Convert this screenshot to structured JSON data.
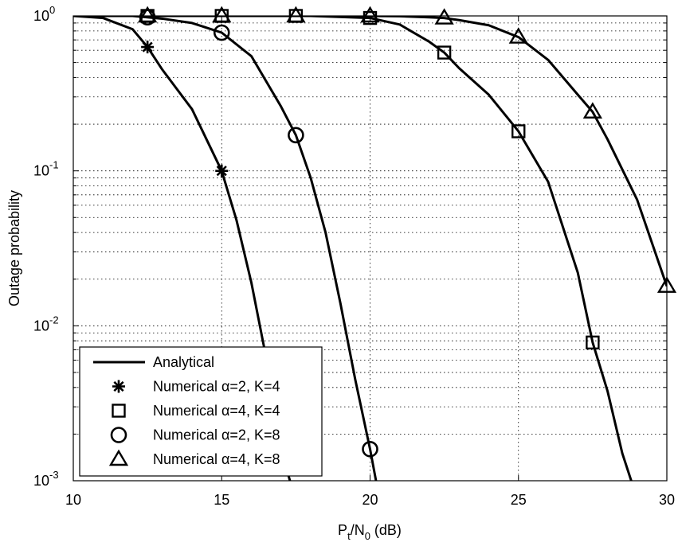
{
  "chart_data": {
    "type": "line",
    "xlabel": "P_t/N_0 (dB)",
    "xlabel_main": "P",
    "xlabel_sub1": "t",
    "xlabel_mid": "/N",
    "xlabel_sub2": "0",
    "xlabel_tail": " (dB)",
    "ylabel": "Outage probability",
    "xlim": [
      10,
      30
    ],
    "ylim": [
      0.001,
      1
    ],
    "yscale": "log",
    "grid": true,
    "legend_position": "bottom-left",
    "x_ticks": [
      10,
      15,
      20,
      25,
      30
    ],
    "x_tick_labels": [
      "10",
      "15",
      "20",
      "25",
      "30"
    ],
    "y_ticks": [
      1,
      0.1,
      0.01,
      0.001
    ],
    "y_tick_labels": [
      {
        "base": "10",
        "exp": "0"
      },
      {
        "base": "10",
        "exp": "-1"
      },
      {
        "base": "10",
        "exp": "-2"
      },
      {
        "base": "10",
        "exp": "-3"
      }
    ],
    "legend": [
      {
        "label": "Analytical",
        "marker": "line"
      },
      {
        "label": "Numerical α=2, K=4",
        "marker": "asterisk"
      },
      {
        "label": "Numerical α=4, K=4",
        "marker": "square"
      },
      {
        "label": "Numerical α=2, K=8",
        "marker": "circle"
      },
      {
        "label": "Numerical α=4, K=8",
        "marker": "triangle"
      }
    ],
    "series": [
      {
        "name": "Numerical α=2, K=4",
        "marker": "asterisk",
        "x": [
          12.5,
          15
        ],
        "y": [
          0.63,
          0.1
        ],
        "curve_x": [
          10,
          11,
          12,
          12.5,
          13,
          14,
          15,
          15.5,
          16,
          16.5,
          17,
          17.3
        ],
        "curve_y": [
          1,
          0.97,
          0.82,
          0.63,
          0.45,
          0.25,
          0.1,
          0.048,
          0.019,
          0.0062,
          0.0016,
          0.001
        ]
      },
      {
        "name": "Numerical α=4, K=4",
        "marker": "square",
        "x": [
          12.5,
          15,
          17.5,
          20,
          22.5,
          25,
          27.5
        ],
        "y": [
          1,
          1,
          1,
          0.97,
          0.58,
          0.18,
          0.0078
        ],
        "curve_x": [
          10,
          18,
          20,
          21,
          22,
          22.5,
          23,
          24,
          25,
          26,
          27,
          27.5,
          28,
          28.5,
          28.8
        ],
        "curve_y": [
          1,
          1,
          0.97,
          0.88,
          0.68,
          0.58,
          0.46,
          0.31,
          0.18,
          0.085,
          0.022,
          0.0078,
          0.0038,
          0.0015,
          0.001
        ]
      },
      {
        "name": "Numerical α=2, K=8",
        "marker": "circle",
        "x": [
          12.5,
          15,
          17.5,
          20
        ],
        "y": [
          0.98,
          0.78,
          0.17,
          0.0016
        ],
        "curve_x": [
          10,
          12,
          12.5,
          13,
          14,
          15,
          16,
          17,
          17.5,
          18,
          18.5,
          19,
          19.5,
          20,
          20.2
        ],
        "curve_y": [
          1,
          1,
          0.98,
          0.96,
          0.9,
          0.78,
          0.55,
          0.26,
          0.17,
          0.09,
          0.04,
          0.014,
          0.0045,
          0.0016,
          0.001
        ]
      },
      {
        "name": "Numerical α=4, K=8",
        "marker": "triangle",
        "x": [
          12.5,
          15,
          17.5,
          20,
          22.5,
          25,
          27.5,
          30
        ],
        "y": [
          1,
          1,
          1,
          1,
          0.97,
          0.73,
          0.24,
          0.018
        ],
        "curve_x": [
          10,
          20,
          21,
          22,
          22.5,
          23,
          24,
          25,
          26,
          27,
          27.5,
          28,
          29,
          30
        ],
        "curve_y": [
          1,
          1,
          0.995,
          0.98,
          0.97,
          0.94,
          0.87,
          0.73,
          0.52,
          0.31,
          0.24,
          0.16,
          0.065,
          0.018
        ]
      }
    ]
  }
}
